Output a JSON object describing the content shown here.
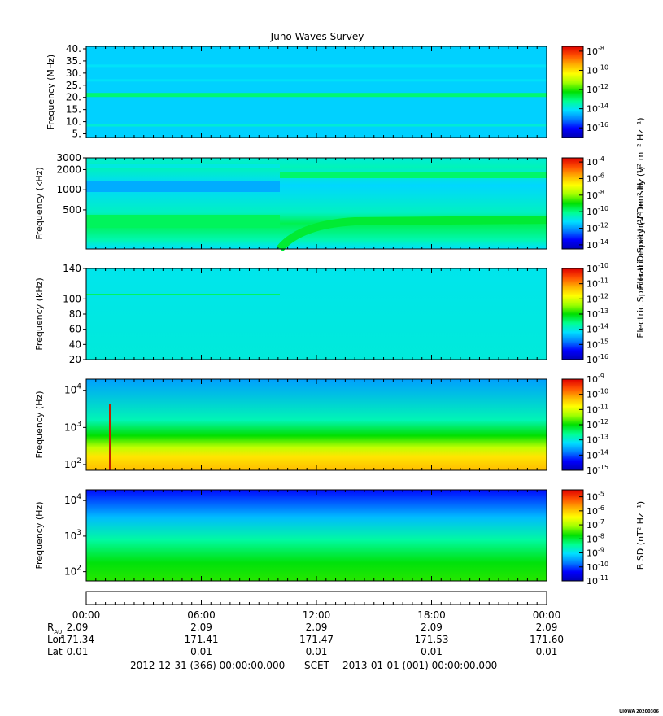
{
  "title": "Juno Waves Survey",
  "footer": {
    "start": "2012-12-31 (366) 00:00:00.000",
    "frame": "SCET",
    "end": "2013-01-01 (001) 00:00:00.000",
    "stamp": "UIOWA 20200306"
  },
  "time_axis": {
    "ticks": [
      "00:00",
      "06:00",
      "12:00",
      "18:00",
      "00:00"
    ],
    "rows": [
      {
        "label": "R",
        "sub": "AU",
        "values": [
          "2.09",
          "2.09",
          "2.09",
          "2.09",
          "2.09"
        ]
      },
      {
        "label": "Lon",
        "sub": "",
        "values": [
          "171.34",
          "171.41",
          "171.47",
          "171.53",
          "171.60"
        ]
      },
      {
        "label": "Lat",
        "sub": "",
        "values": [
          "0.01",
          "0.01",
          "0.01",
          "0.01",
          "0.01"
        ]
      }
    ]
  },
  "shared_colorbar_label": "Electric Spectral Density (V² m⁻² Hz⁻¹)",
  "colormap": [
    "#0000b4",
    "#0000ff",
    "#0080ff",
    "#00e0ff",
    "#00ff90",
    "#00e000",
    "#a0ff00",
    "#ffff00",
    "#ffb000",
    "#ff5000",
    "#e00000"
  ],
  "chart_data": [
    {
      "type": "heatmap",
      "title": "Juno Waves Survey",
      "ylabel": "Frequency (MHz)",
      "xlabel": "",
      "yscale": "linear",
      "ylim": [
        3.5,
        41
      ],
      "y_ticks": [
        "5.",
        "10.",
        "15.",
        "20.",
        "25.",
        "30.",
        "35.",
        "40."
      ],
      "y_tick_values": [
        5,
        10,
        15,
        20,
        25,
        30,
        35,
        40
      ],
      "colorbar_ticks": [
        "-8",
        "-10",
        "-12",
        "-14",
        "-16"
      ],
      "colorbar_range": [
        -17,
        -7.5
      ],
      "colorbar_label": "",
      "bands": [
        {
          "y": 21,
          "level": -13.0,
          "width": 0.045
        },
        {
          "y": 8.5,
          "level": -13.8,
          "width": 0.025
        },
        {
          "y": 33,
          "level": -14.1,
          "width": 0.02
        },
        {
          "y": 27,
          "level": -14.1,
          "width": 0.02
        }
      ],
      "background_level": -14.3
    },
    {
      "type": "heatmap",
      "ylabel": "Frequency (kHz)",
      "xlabel": "",
      "yscale": "log",
      "ylim": [
        130,
        3000
      ],
      "y_ticks": [
        "500",
        "1000",
        "2000",
        "3000"
      ],
      "y_tick_values": [
        500,
        1000,
        2000,
        3000
      ],
      "colorbar_ticks": [
        "-4",
        "-6",
        "-8",
        "-10",
        "-12",
        "-14"
      ],
      "colorbar_range": [
        -14.5,
        -3.5
      ],
      "colorbar_label": "Electric Spectral Density (V² m⁻² Hz⁻¹)",
      "background_level": -10.6
    },
    {
      "type": "heatmap",
      "ylabel": "Frequency (kHz)",
      "xlabel": "",
      "yscale": "linear",
      "ylim": [
        20,
        140
      ],
      "y_ticks": [
        "20",
        "40",
        "60",
        "80",
        "100",
        "140"
      ],
      "y_tick_values": [
        20,
        40,
        60,
        80,
        100,
        140
      ],
      "colorbar_ticks": [
        "-10",
        "-11",
        "-12",
        "-13",
        "-14",
        "-15",
        "-16"
      ],
      "colorbar_range": [
        -16,
        -10
      ],
      "colorbar_label": "",
      "background_level": -14.0
    },
    {
      "type": "heatmap",
      "ylabel": "Frequency (Hz)",
      "xlabel": "",
      "yscale": "log",
      "ylim": [
        70,
        20000
      ],
      "y_ticks": [
        "2",
        "3",
        "4"
      ],
      "y_tick_values": [
        100,
        1000,
        10000
      ],
      "colorbar_ticks": [
        "-9",
        "-10",
        "-11",
        "-12",
        "-13",
        "-14",
        "-15"
      ],
      "colorbar_range": [
        -15,
        -9
      ],
      "colorbar_label": "",
      "background_level": -13.0
    },
    {
      "type": "heatmap",
      "ylabel": "Frequency (Hz)",
      "xlabel": "",
      "yscale": "log",
      "ylim": [
        55,
        20000
      ],
      "y_ticks": [
        "2",
        "3",
        "4"
      ],
      "y_tick_values": [
        100,
        1000,
        10000
      ],
      "colorbar_ticks": [
        "-5",
        "-6",
        "-7",
        "-8",
        "-9",
        "-10",
        "-11"
      ],
      "colorbar_range": [
        -11,
        -4.5
      ],
      "colorbar_label": "B SD (nT² Hz⁻¹)",
      "background_level": -8.0
    }
  ]
}
